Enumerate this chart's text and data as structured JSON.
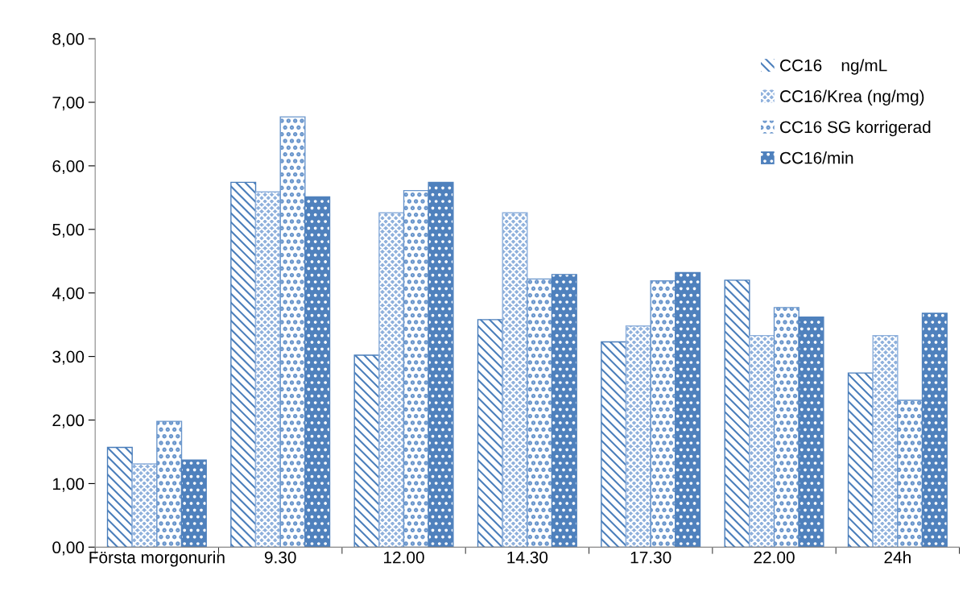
{
  "chart_data": {
    "type": "bar",
    "categories": [
      "Första morgonurin",
      "9.30",
      "12.00",
      "14.30",
      "17.30",
      "22.00",
      "24h"
    ],
    "series": [
      {
        "name": "CC16    ng/mL",
        "color": "#4a7ebb",
        "values": [
          1.57,
          5.74,
          3.02,
          3.58,
          3.23,
          4.2,
          2.74
        ]
      },
      {
        "name": "CC16/Krea (ng/mg)",
        "color": "#8eb0dc",
        "values": [
          1.31,
          5.59,
          5.26,
          5.26,
          3.48,
          3.33,
          3.33
        ]
      },
      {
        "name": "CC16 SG korrigerad",
        "color": "#6a96cc",
        "values": [
          1.98,
          6.77,
          5.61,
          4.22,
          4.19,
          3.77,
          2.31
        ]
      },
      {
        "name": "CC16/min",
        "color": "#4f81bd",
        "values": [
          1.37,
          5.51,
          5.74,
          4.29,
          4.32,
          3.62,
          3.68
        ]
      }
    ],
    "ylim": [
      0,
      8
    ],
    "yticks": [
      {
        "value": 0,
        "label": "0,00"
      },
      {
        "value": 1,
        "label": "1,00"
      },
      {
        "value": 2,
        "label": "2,00"
      },
      {
        "value": 3,
        "label": "3,00"
      },
      {
        "value": 4,
        "label": "4,00"
      },
      {
        "value": 5,
        "label": "5,00"
      },
      {
        "value": 6,
        "label": "6,00"
      },
      {
        "value": 7,
        "label": "7,00"
      },
      {
        "value": 8,
        "label": "8,00"
      }
    ],
    "grid": false,
    "legend": "top right"
  }
}
